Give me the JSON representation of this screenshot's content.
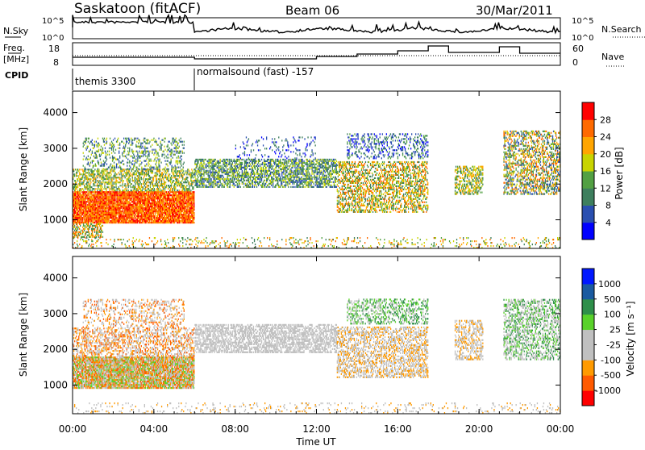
{
  "header": {
    "station": "Saskatoon (fitACF)",
    "beam": "Beam 06",
    "date": "30/Mar/2011"
  },
  "panels": {
    "nsky": {
      "label": "N.Sky",
      "ticks_left": [
        "10^5",
        "10^0"
      ],
      "ticks_right": [
        "10^5",
        "10^0"
      ],
      "right_label": "N.Search"
    },
    "freq": {
      "label_line1": "Freq.",
      "label_line2": "[MHz]",
      "ticks_left": [
        "18",
        "8"
      ],
      "ticks_right": [
        "60",
        "0"
      ],
      "right_label": "Nave"
    },
    "cpid": {
      "label": "CPID",
      "segments": [
        {
          "text": "themis 3300",
          "start_hour": 0
        },
        {
          "text": "normalsound (fast) -157",
          "start_hour": 6
        }
      ]
    }
  },
  "colors": {
    "power": [
      "#0000ff",
      "#2a4fb0",
      "#3e7f5e",
      "#52a043",
      "#c8d400",
      "#ffa500",
      "#ff6a00",
      "#ff0000"
    ],
    "velocity": [
      "#ff0000",
      "#ff5a00",
      "#ff9a00",
      "#c0c0c0",
      "#c0c0c0",
      "#59d22a",
      "#2e8f4a",
      "#1a5aa0",
      "#0018ff"
    ]
  },
  "chart_data": [
    {
      "type": "heatmap",
      "ylabel": "Slant Range [km]",
      "yticks": [
        "1000",
        "2000",
        "3000",
        "4000"
      ],
      "ylim": [
        200,
        4600
      ],
      "xlim": [
        0,
        24
      ],
      "colorbar_label": "Power [dB]",
      "colorbar_ticks": [
        "4",
        "8",
        "12",
        "16",
        "20",
        "24",
        "28"
      ],
      "colorbar_range": [
        0,
        32
      ]
    },
    {
      "type": "heatmap",
      "ylabel": "Slant Range [km]",
      "yticks": [
        "1000",
        "2000",
        "3000",
        "4000"
      ],
      "ylim": [
        200,
        4600
      ],
      "xlim": [
        0,
        24
      ],
      "colorbar_label": "Velocity [m s⁻¹]",
      "colorbar_ticks": [
        "1000",
        "500",
        "100",
        "25",
        "-25",
        "-100",
        "-500",
        "-1000"
      ]
    }
  ],
  "xaxis": {
    "label": "Time UT",
    "ticks": [
      "00:00",
      "04:00",
      "08:00",
      "12:00",
      "16:00",
      "20:00",
      "00:00"
    ],
    "tick_hours": [
      0,
      4,
      8,
      12,
      16,
      20,
      24
    ]
  }
}
